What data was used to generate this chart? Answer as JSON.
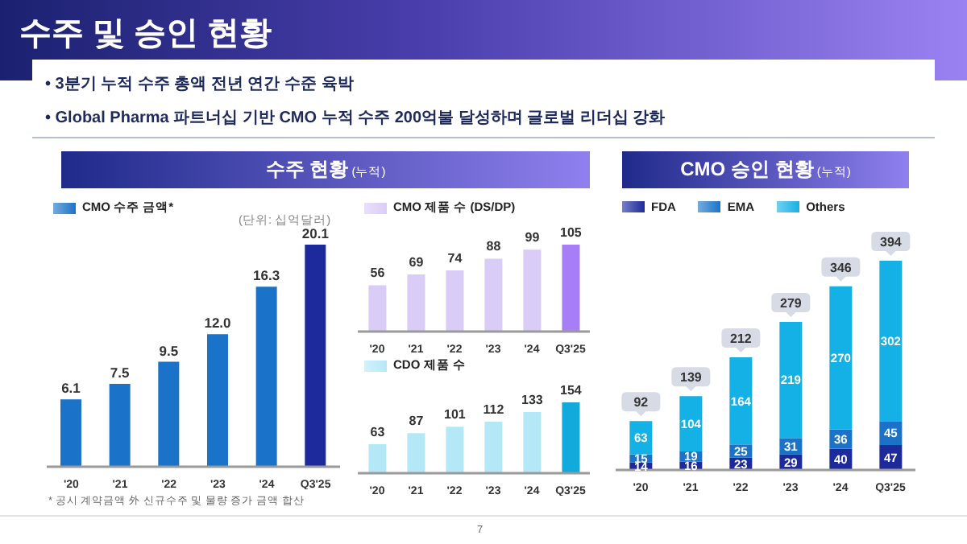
{
  "chart_data": [
    {
      "type": "bar",
      "title": "수주 현황 (누적)",
      "categories": [
        "'20",
        "'21",
        "'22",
        "'23",
        "'24",
        "Q3'25"
      ],
      "series": [
        {
          "name": "CMO 수주 금액*",
          "color": "#1a73c8",
          "colors": [
            "#1a73c8",
            "#1a73c8",
            "#1a73c8",
            "#1a73c8",
            "#1a73c8",
            "#1c2a9c"
          ],
          "values": [
            6.1,
            7.5,
            9.5,
            12.0,
            16.3,
            20.1
          ],
          "value_labels": [
            "6.1",
            "7.5",
            "9.5",
            "12.0",
            "16.3",
            "20.1"
          ]
        }
      ],
      "annotations": [
        "수주 및 승인 현황",
        "• 3분기 누적 수주 총액 전년 연간 수준 육박",
        "• Global Pharma 파트너십 기반 CMO 누적 수주 200억불 달성하며 글로벌 리더십 강화",
        "(단위: 십억달러)",
        "* 공시 계약금액 外 신규수주 및 물량 증가 금액 합산",
        "7"
      ],
      "legend": "top left",
      "tick_labels": "x"
    },
    {
      "type": "bar",
      "categories": [
        "'20",
        "'21",
        "'22",
        "'23",
        "'24",
        "Q3'25"
      ],
      "series": [
        {
          "name": "CMO 제품 수 (DS/DP)",
          "color": "#d9ccf7",
          "colors": [
            "#d9ccf7",
            "#d9ccf7",
            "#d9ccf7",
            "#d9ccf7",
            "#d9ccf7",
            "#a77ef5"
          ],
          "values": [
            56,
            69,
            74,
            88,
            99,
            105
          ]
        }
      ],
      "data_labels": true,
      "legend": "top left",
      "tick_labels": "x"
    },
    {
      "type": "bar",
      "categories": [
        "'20",
        "'21",
        "'22",
        "'23",
        "'24",
        "Q3'25"
      ],
      "series": [
        {
          "name": "CDO 제품 수",
          "color": "#b5e8f7",
          "colors": [
            "#b5e8f7",
            "#b5e8f7",
            "#b5e8f7",
            "#b5e8f7",
            "#b5e8f7",
            "#12a9dc"
          ],
          "values": [
            63,
            87,
            101,
            112,
            133,
            154
          ]
        }
      ],
      "data_labels": true,
      "legend": "top left",
      "tick_labels": "x"
    },
    {
      "type": "bar",
      "title": "CMO 승인 현황 (누적)",
      "categories": [
        "'20",
        "'21",
        "'22",
        "'23",
        "'24",
        "Q3'25"
      ],
      "stacked": true,
      "series": [
        {
          "name": "FDA",
          "color": "#1c2a9c",
          "values": [
            14,
            16,
            23,
            29,
            40,
            47
          ]
        },
        {
          "name": "EMA",
          "color": "#1a73c8",
          "values": [
            15,
            19,
            25,
            31,
            36,
            45
          ]
        },
        {
          "name": "Others",
          "color": "#14b1e6",
          "values": [
            63,
            104,
            164,
            219,
            270,
            302
          ]
        }
      ],
      "totals": [
        "92",
        "139",
        "212",
        "279",
        "346",
        "394"
      ],
      "data_labels": true,
      "legend": "top left",
      "tick_labels": "x"
    }
  ]
}
